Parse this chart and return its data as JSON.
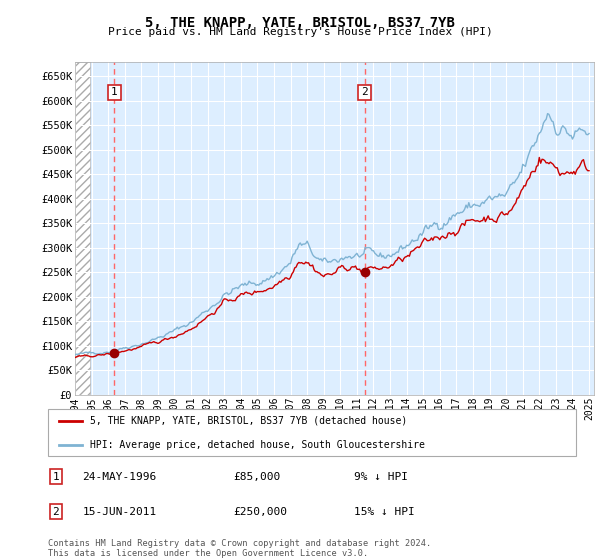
{
  "title": "5, THE KNAPP, YATE, BRISTOL, BS37 7YB",
  "subtitle": "Price paid vs. HM Land Registry's House Price Index (HPI)",
  "xlim_start": 1994.0,
  "xlim_end": 2025.3,
  "ylim": [
    0,
    680000
  ],
  "yticks": [
    0,
    50000,
    100000,
    150000,
    200000,
    250000,
    300000,
    350000,
    400000,
    450000,
    500000,
    550000,
    600000,
    650000
  ],
  "ytick_labels": [
    "£0",
    "£50K",
    "£100K",
    "£150K",
    "£200K",
    "£250K",
    "£300K",
    "£350K",
    "£400K",
    "£450K",
    "£500K",
    "£550K",
    "£600K",
    "£650K"
  ],
  "xticks": [
    1994,
    1995,
    1996,
    1997,
    1998,
    1999,
    2000,
    2001,
    2002,
    2003,
    2004,
    2005,
    2006,
    2007,
    2008,
    2009,
    2010,
    2011,
    2012,
    2013,
    2014,
    2015,
    2016,
    2017,
    2018,
    2019,
    2020,
    2021,
    2022,
    2023,
    2024,
    2025
  ],
  "sale1_date": 1996.38,
  "sale1_price": 85000,
  "sale1_label": "1",
  "sale2_date": 2011.46,
  "sale2_price": 250000,
  "sale2_label": "2",
  "red_line_color": "#cc0000",
  "blue_line_color": "#7fb3d3",
  "sale_dot_color": "#990000",
  "vline_color": "#ff6666",
  "bg_plot_color": "#ddeeff",
  "legend_label_red": "5, THE KNAPP, YATE, BRISTOL, BS37 7YB (detached house)",
  "legend_label_blue": "HPI: Average price, detached house, South Gloucestershire",
  "annotation1_date": "24-MAY-1996",
  "annotation1_price": "£85,000",
  "annotation1_pct": "9% ↓ HPI",
  "annotation2_date": "15-JUN-2011",
  "annotation2_price": "£250,000",
  "annotation2_pct": "15% ↓ HPI",
  "footer": "Contains HM Land Registry data © Crown copyright and database right 2024.\nThis data is licensed under the Open Government Licence v3.0."
}
